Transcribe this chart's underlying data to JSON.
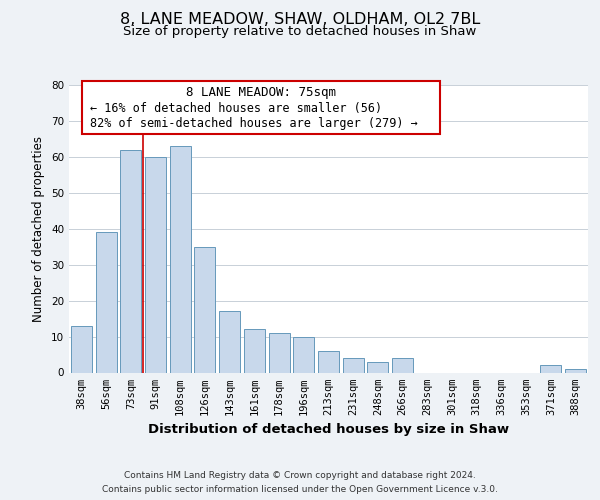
{
  "title": "8, LANE MEADOW, SHAW, OLDHAM, OL2 7BL",
  "subtitle": "Size of property relative to detached houses in Shaw",
  "xlabel": "Distribution of detached houses by size in Shaw",
  "ylabel": "Number of detached properties",
  "bar_color": "#c8d8eb",
  "bar_edge_color": "#6699bb",
  "highlight_line_color": "#cc0000",
  "categories": [
    "38sqm",
    "56sqm",
    "73sqm",
    "91sqm",
    "108sqm",
    "126sqm",
    "143sqm",
    "161sqm",
    "178sqm",
    "196sqm",
    "213sqm",
    "231sqm",
    "248sqm",
    "266sqm",
    "283sqm",
    "301sqm",
    "318sqm",
    "336sqm",
    "353sqm",
    "371sqm",
    "388sqm"
  ],
  "values": [
    13,
    39,
    62,
    60,
    63,
    35,
    17,
    12,
    11,
    10,
    6,
    4,
    3,
    4,
    0,
    0,
    0,
    0,
    0,
    2,
    1
  ],
  "ylim": [
    0,
    80
  ],
  "yticks": [
    0,
    10,
    20,
    30,
    40,
    50,
    60,
    70,
    80
  ],
  "annotation_title": "8 LANE MEADOW: 75sqm",
  "annotation_line1": "← 16% of detached houses are smaller (56)",
  "annotation_line2": "82% of semi-detached houses are larger (279) →",
  "footer_line1": "Contains HM Land Registry data © Crown copyright and database right 2024.",
  "footer_line2": "Contains public sector information licensed under the Open Government Licence v.3.0.",
  "background_color": "#eef2f6",
  "plot_background_color": "#ffffff",
  "grid_color": "#c8d0d8",
  "title_fontsize": 11.5,
  "subtitle_fontsize": 9.5,
  "xlabel_fontsize": 9.5,
  "ylabel_fontsize": 8.5,
  "tick_fontsize": 7.5,
  "annotation_box_color": "#ffffff",
  "annotation_box_edge_color": "#cc0000",
  "annotation_title_fontsize": 9,
  "annotation_text_fontsize": 8.5,
  "footer_fontsize": 6.5
}
